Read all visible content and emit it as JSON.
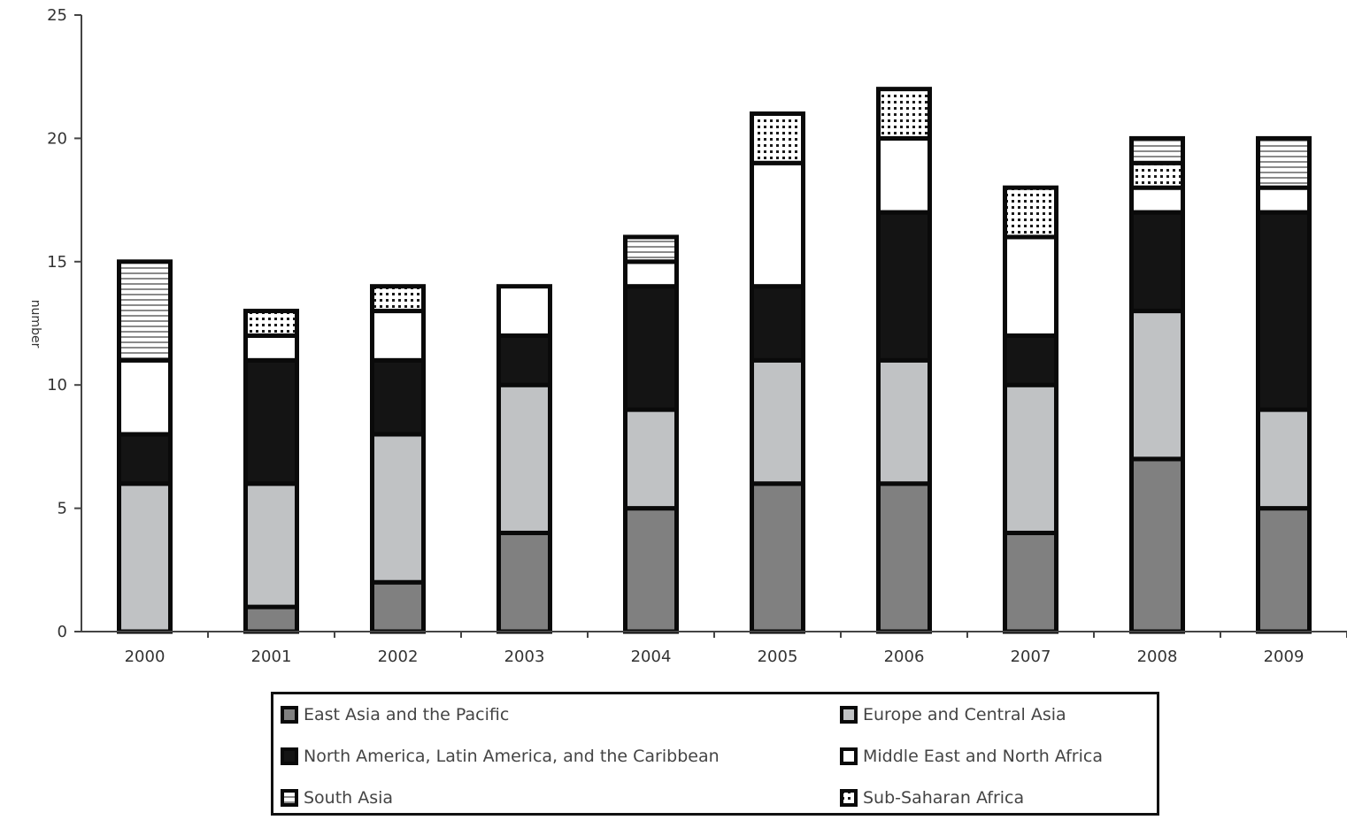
{
  "chart_data": {
    "type": "bar",
    "stacked": true,
    "ylabel": "number",
    "ylim": [
      0,
      25
    ],
    "yticks": [
      0,
      5,
      10,
      15,
      20,
      25
    ],
    "categories": [
      "2000",
      "2001",
      "2002",
      "2003",
      "2004",
      "2005",
      "2006",
      "2007",
      "2008",
      "2009"
    ],
    "series": [
      {
        "name": "East Asia and the Pacific",
        "values": [
          0,
          1,
          2,
          4,
          5,
          6,
          6,
          4,
          7,
          5
        ],
        "pattern": "dark-gray"
      },
      {
        "name": "Europe and Central Asia",
        "values": [
          6,
          5,
          6,
          6,
          4,
          5,
          5,
          6,
          6,
          4
        ],
        "pattern": "light-gray"
      },
      {
        "name": "North America, Latin America, and the Caribbean",
        "values": [
          2,
          5,
          3,
          2,
          5,
          3,
          6,
          2,
          4,
          8
        ],
        "pattern": "black"
      },
      {
        "name": "Middle East and North Africa",
        "values": [
          3,
          1,
          2,
          2,
          1,
          5,
          3,
          4,
          1,
          1
        ],
        "pattern": "white"
      },
      {
        "name": "Sub-Saharan Africa",
        "values": [
          0,
          1,
          1,
          0,
          0,
          2,
          2,
          2,
          1,
          0
        ],
        "pattern": "dots"
      },
      {
        "name": "South Asia",
        "values": [
          4,
          0,
          0,
          0,
          1,
          0,
          0,
          0,
          1,
          2
        ],
        "pattern": "hlines"
      }
    ],
    "grid": false,
    "legend_position": "bottom"
  },
  "legend": [
    {
      "label": "East Asia and the Pacific",
      "pattern": "dark-gray"
    },
    {
      "label": "Europe and Central Asia",
      "pattern": "light-gray"
    },
    {
      "label": "North America, Latin America, and the Caribbean",
      "pattern": "black"
    },
    {
      "label": "Middle East and North Africa",
      "pattern": "white"
    },
    {
      "label": "South Asia",
      "pattern": "hlines"
    },
    {
      "label": "Sub-Saharan Africa",
      "pattern": "dots"
    }
  ],
  "colors": {
    "dark-gray": "#808080",
    "light-gray": "#c0c2c4",
    "black": "#141414",
    "white": "#ffffff",
    "outline": "#0a0a0a",
    "axis": "#444444"
  }
}
